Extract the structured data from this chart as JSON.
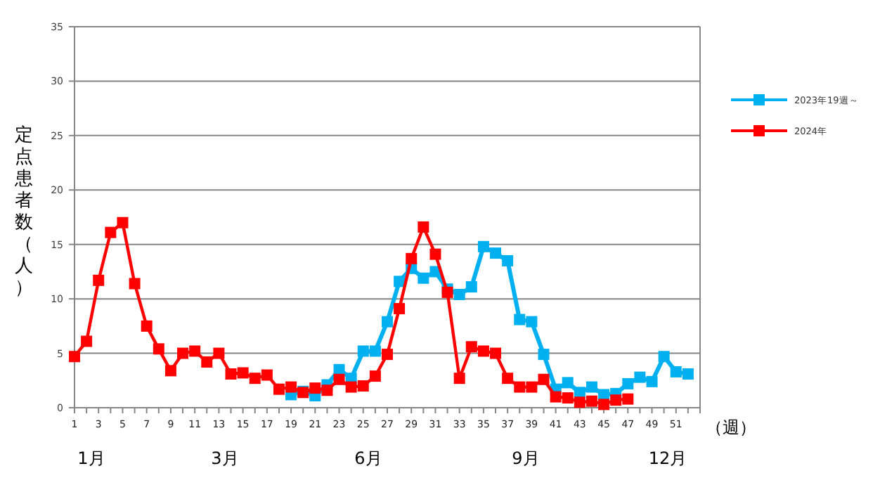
{
  "chart_data": {
    "type": "line",
    "ylabel": "定点患者数（人）",
    "xlabel": "（週）",
    "xlim": [
      1,
      53
    ],
    "xticks": [
      1,
      {
        "value": 2,
        "label": null
      },
      3,
      {
        "value": 4,
        "label": null
      },
      5,
      {
        "value": 6,
        "label": null
      },
      7,
      {
        "value": 8,
        "label": null
      },
      9,
      {
        "value": 10,
        "label": null
      },
      11,
      {
        "value": 12,
        "label": null
      },
      13,
      {
        "value": 14,
        "label": null
      },
      15,
      {
        "value": 16,
        "label": null
      },
      17,
      {
        "value": 18,
        "label": null
      },
      19,
      {
        "value": 20,
        "label": null
      },
      21,
      {
        "value": 22,
        "label": null
      },
      23,
      {
        "value": 24,
        "label": null
      },
      25,
      {
        "value": 26,
        "label": null
      },
      27,
      {
        "value": 28,
        "label": null
      },
      29,
      {
        "value": 30,
        "label": null
      },
      31,
      {
        "value": 32,
        "label": null
      },
      33,
      {
        "value": 34,
        "label": null
      },
      35,
      {
        "value": 36,
        "label": null
      },
      37,
      {
        "value": 38,
        "label": null
      },
      39,
      {
        "value": 40,
        "label": null
      },
      41,
      {
        "value": 42,
        "label": null
      },
      43,
      {
        "value": 44,
        "label": null
      },
      45,
      {
        "value": 46,
        "label": null
      },
      47,
      {
        "value": 48,
        "label": null
      },
      49,
      {
        "value": 50,
        "label": null
      },
      51,
      {
        "value": 52,
        "label": null
      },
      {
        "value": 53,
        "label": null
      }
    ],
    "ylim": [
      0,
      35
    ],
    "yticks": [
      0,
      5,
      10,
      15,
      20,
      25,
      30,
      35
    ],
    "grid": "y",
    "legend": "right",
    "marker": "square",
    "line_style": "solid",
    "annotations": [
      "1月",
      "3月",
      "6月",
      "9月",
      "12月"
    ],
    "series": [
      {
        "name": "2023年19週～",
        "color": "#00b0f0",
        "x": [
          19,
          20,
          21,
          22,
          23,
          24,
          25,
          26,
          27,
          28,
          29,
          30,
          31,
          32,
          33,
          34,
          35,
          36,
          37,
          38,
          39,
          40,
          41,
          42,
          43,
          44,
          45,
          46,
          47,
          48,
          49,
          50,
          51,
          52
        ],
        "values": [
          1.2,
          1.5,
          1.1,
          2.1,
          3.5,
          2.7,
          5.2,
          5.2,
          7.9,
          11.6,
          12.8,
          11.9,
          12.5,
          10.9,
          10.4,
          11.1,
          14.8,
          14.2,
          13.5,
          8.1,
          7.9,
          4.9,
          1.7,
          2.3,
          1.4,
          1.9,
          1.2,
          1.3,
          2.2,
          2.8,
          2.4,
          4.7,
          3.3,
          3.1
        ]
      },
      {
        "name": "2024年",
        "color": "#ff0000",
        "x": [
          1,
          2,
          3,
          4,
          5,
          6,
          7,
          8,
          9,
          10,
          11,
          12,
          13,
          14,
          15,
          16,
          17,
          18,
          19,
          20,
          21,
          22,
          23,
          24,
          25,
          26,
          27,
          28,
          29,
          30,
          31,
          32,
          33,
          34,
          35,
          36,
          37,
          38,
          39,
          40,
          41,
          42,
          43,
          44,
          45,
          46,
          47
        ],
        "values": [
          4.7,
          6.1,
          11.7,
          16.1,
          17.0,
          11.4,
          7.5,
          5.4,
          3.4,
          5.0,
          5.2,
          4.2,
          5.0,
          3.1,
          3.2,
          2.7,
          3.0,
          1.7,
          1.9,
          1.4,
          1.8,
          1.6,
          2.6,
          1.9,
          2.0,
          2.9,
          4.9,
          9.1,
          13.7,
          16.6,
          14.1,
          10.6,
          2.7,
          5.6,
          5.2,
          5.0,
          2.7,
          1.9,
          1.9,
          2.6,
          1.0,
          0.9,
          0.5,
          0.6,
          0.3,
          0.7,
          0.8
        ]
      }
    ]
  }
}
